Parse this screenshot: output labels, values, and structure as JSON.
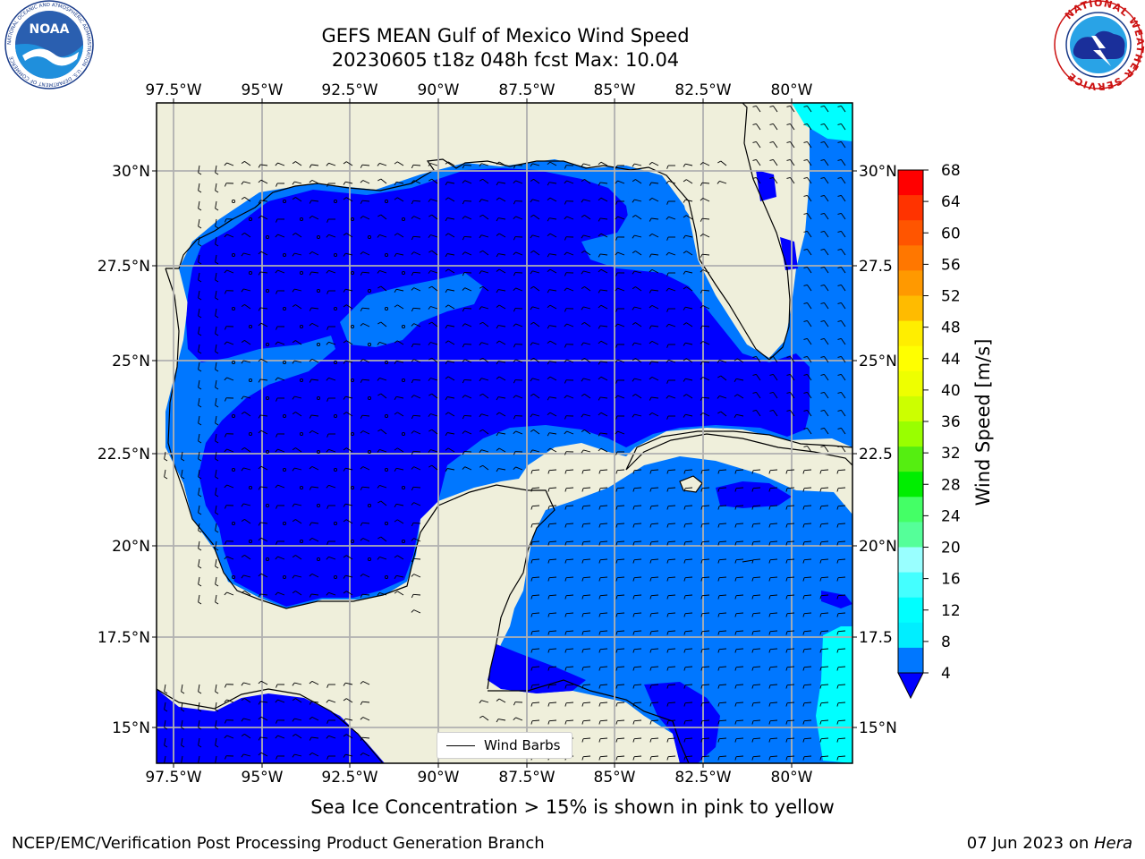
{
  "title_line1": "GEFS MEAN Gulf of Mexico Wind Speed",
  "title_line2": "20230605 t18z 048h fcst   Max: 10.04",
  "lon_labels": [
    "97.5°W",
    "95°W",
    "92.5°W",
    "90°W",
    "87.5°W",
    "85°W",
    "82.5°W",
    "80°W"
  ],
  "lat_labels_left": [
    "30°N",
    "27.5°N",
    "25°N",
    "22.5°N",
    "20°N",
    "17.5°N",
    "15°N"
  ],
  "lat_labels_right": [
    "30°N",
    "27.5",
    "25°N",
    "22.5",
    "20°N",
    "17.5",
    "15°N"
  ],
  "legend_label": "Wind Barbs",
  "colorbar": {
    "label": "Wind Speed [m/s]",
    "ticks": [
      "68",
      "64",
      "60",
      "56",
      "52",
      "48",
      "44",
      "40",
      "36",
      "32",
      "28",
      "24",
      "20",
      "16",
      "12",
      "8",
      "4"
    ],
    "colors_top_to_bottom": [
      "#ff0000",
      "#ff3300",
      "#ff5500",
      "#ff7700",
      "#ff9900",
      "#ffbb00",
      "#ffee00",
      "#ffff00",
      "#eeff00",
      "#ccff00",
      "#99ff00",
      "#55ee11",
      "#00ee00",
      "#44ff66",
      "#55ff99",
      "#99ffff",
      "#44ffff",
      "#00ffff",
      "#00eeff",
      "#0077ff"
    ],
    "underflow_color": "#0000ff"
  },
  "colors": {
    "land": "#efefdb",
    "water_low": "#0000ff",
    "water_mid": "#0077ff",
    "water_high": "#00ffff"
  },
  "caption": "Sea Ice Concentration > 15% is shown in pink to yellow",
  "credit_left": "NCEP/EMC/Verification Post Processing Product Generation Branch",
  "credit_right_date": "07 Jun 2023 on ",
  "credit_right_host": "Hera",
  "logos": {
    "left": "NOAA",
    "left_ring": "NATIONAL OCEANIC AND ATMOSPHERIC ADMINISTRATION · U.S. DEPARTMENT OF COMMERCE",
    "right_ring": "NATIONAL WEATHER SERVICE"
  }
}
